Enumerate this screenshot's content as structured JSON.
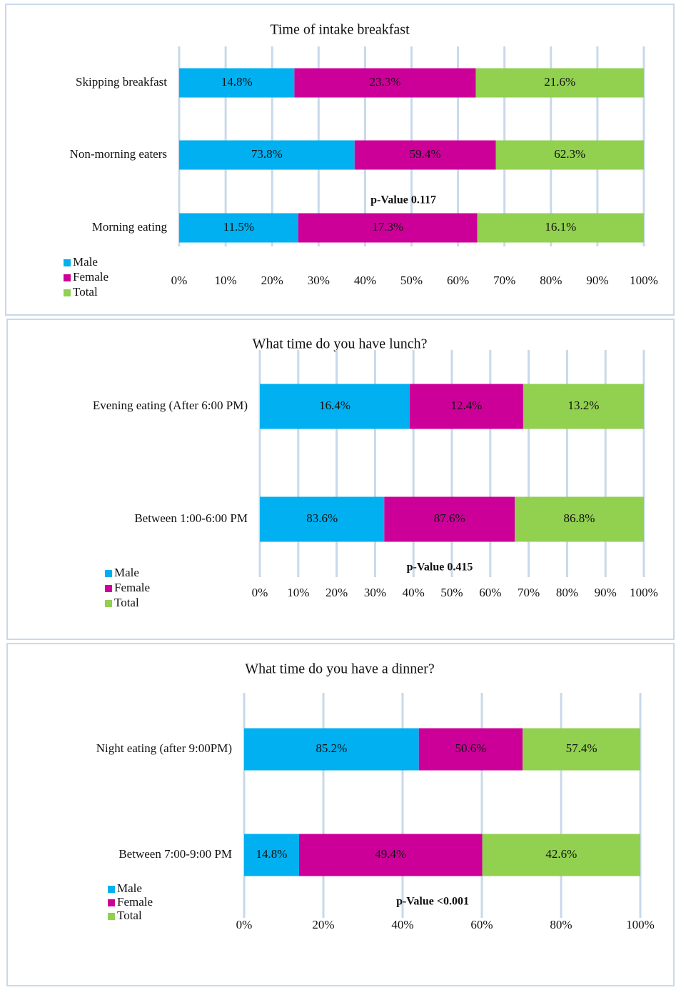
{
  "chart_data": [
    {
      "type": "bar",
      "stacked": "percent",
      "orientation": "horizontal",
      "title": "Time of intake breakfast",
      "categories": [
        "Skipping breakfast",
        "Non-morning eaters",
        "Morning eating"
      ],
      "series": [
        {
          "name": "Male",
          "color": "#00b0f0",
          "values": [
            14.8,
            73.8,
            11.5
          ],
          "value_labels": [
            "14.8%",
            "73.8%",
            "11.5%"
          ]
        },
        {
          "name": "Female",
          "color": "#cc0099",
          "values": [
            23.3,
            59.4,
            17.3
          ],
          "value_labels": [
            "23.3%",
            "59.4%",
            "17.3%"
          ]
        },
        {
          "name": "Total",
          "color": "#92d050",
          "values": [
            21.6,
            62.3,
            16.1
          ],
          "value_labels": [
            "21.6%",
            "62.3%",
            "16.1%"
          ]
        }
      ],
      "xlim": [
        0,
        100
      ],
      "xticks": [
        {
          "value": 0,
          "label": "0%"
        },
        {
          "value": 10,
          "label": "10%"
        },
        {
          "value": 20,
          "label": "20%"
        },
        {
          "value": 30,
          "label": "30%"
        },
        {
          "value": 40,
          "label": "40%"
        },
        {
          "value": 50,
          "label": "50%"
        },
        {
          "value": 60,
          "label": "60%"
        },
        {
          "value": 70,
          "label": "70%"
        },
        {
          "value": 80,
          "label": "80%"
        },
        {
          "value": 90,
          "label": "90%"
        },
        {
          "value": 100,
          "label": "100%"
        }
      ],
      "grid": true,
      "legend": "bottom-left",
      "annotation": "p-Value 0.117"
    },
    {
      "type": "bar",
      "stacked": "percent",
      "orientation": "horizontal",
      "title": "What time do you have lunch?",
      "categories": [
        "Evening eating (After 6:00 PM)",
        "Between 1:00-6:00 PM"
      ],
      "series": [
        {
          "name": "Male",
          "color": "#00b0f0",
          "values": [
            16.4,
            83.6
          ],
          "value_labels": [
            "16.4%",
            "83.6%"
          ]
        },
        {
          "name": "Female",
          "color": "#cc0099",
          "values": [
            12.4,
            87.6
          ],
          "value_labels": [
            "12.4%",
            "87.6%"
          ]
        },
        {
          "name": "Total",
          "color": "#92d050",
          "values": [
            13.2,
            86.8
          ],
          "value_labels": [
            "13.2%",
            "86.8%"
          ]
        }
      ],
      "xlim": [
        0,
        100
      ],
      "xticks": [
        {
          "value": 0,
          "label": "0%"
        },
        {
          "value": 10,
          "label": "10%"
        },
        {
          "value": 20,
          "label": "20%"
        },
        {
          "value": 30,
          "label": "30%"
        },
        {
          "value": 40,
          "label": "40%"
        },
        {
          "value": 50,
          "label": "50%"
        },
        {
          "value": 60,
          "label": "60%"
        },
        {
          "value": 70,
          "label": "70%"
        },
        {
          "value": 80,
          "label": "80%"
        },
        {
          "value": 90,
          "label": "90%"
        },
        {
          "value": 100,
          "label": "100%"
        }
      ],
      "grid": true,
      "legend": "bottom-left",
      "annotation": "p-Value 0.415"
    },
    {
      "type": "bar",
      "stacked": "percent",
      "orientation": "horizontal",
      "title": "What time do you have a dinner?",
      "categories": [
        "Night eating (after 9:00PM)",
        "Between 7:00-9:00 PM"
      ],
      "series": [
        {
          "name": "Male",
          "color": "#00b0f0",
          "values": [
            85.2,
            14.8
          ],
          "value_labels": [
            "85.2%",
            "14.8%"
          ]
        },
        {
          "name": "Female",
          "color": "#cc0099",
          "values": [
            50.6,
            49.4
          ],
          "value_labels": [
            "50.6%",
            "49.4%"
          ]
        },
        {
          "name": "Total",
          "color": "#92d050",
          "values": [
            57.4,
            42.6
          ],
          "value_labels": [
            "57.4%",
            "42.6%"
          ]
        }
      ],
      "xlim": [
        0,
        100
      ],
      "xticks": [
        {
          "value": 0,
          "label": "0%"
        },
        {
          "value": 20,
          "label": "20%"
        },
        {
          "value": 40,
          "label": "40%"
        },
        {
          "value": 60,
          "label": "60%"
        },
        {
          "value": 80,
          "label": "80%"
        },
        {
          "value": 100,
          "label": "100%"
        }
      ],
      "grid": true,
      "legend": "bottom-left",
      "annotation": "p-Value <0.001"
    }
  ]
}
